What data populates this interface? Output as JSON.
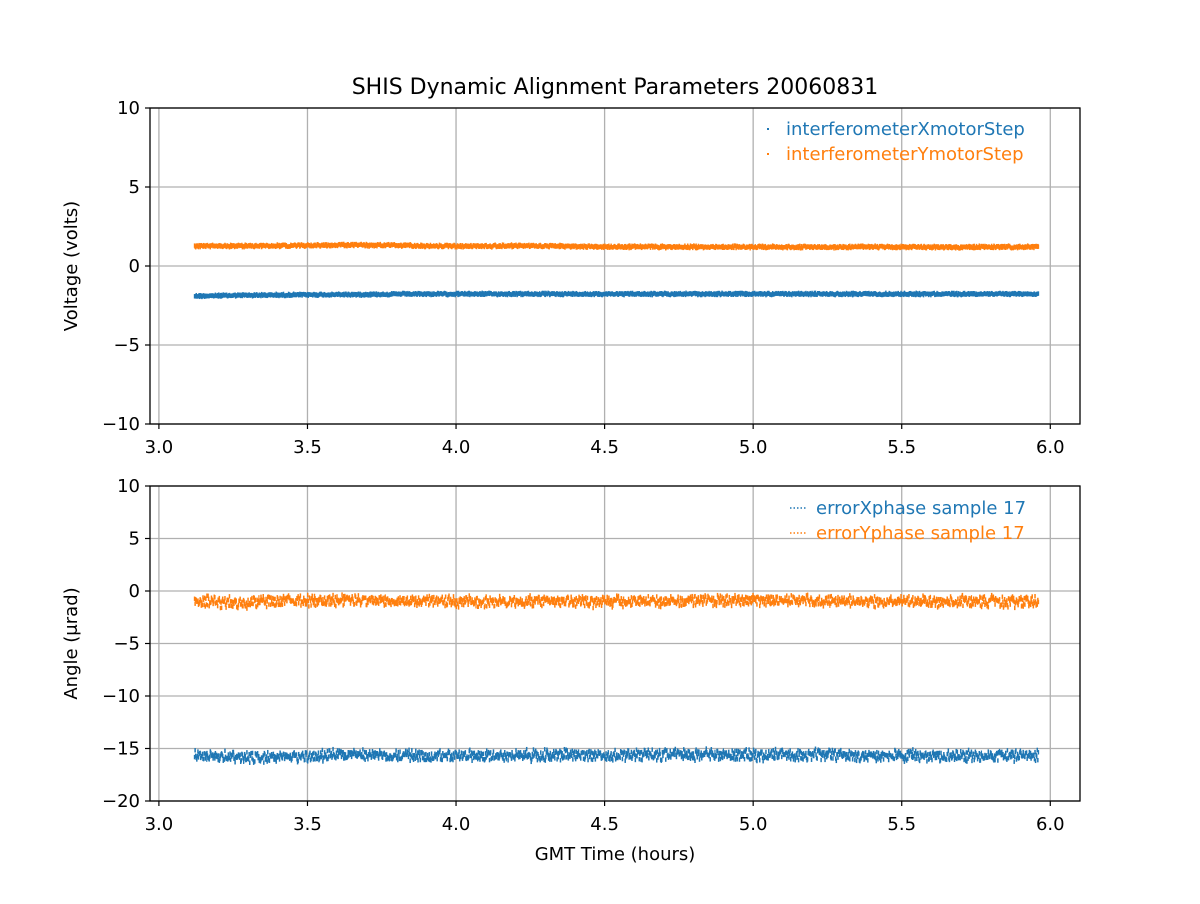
{
  "title": "SHIS Dynamic Alignment Parameters 20060831",
  "colors": {
    "blue": "#1f77b4",
    "orange": "#ff7f0e",
    "grid": "#b0b0b0",
    "axes": "#000000"
  },
  "chart_data": [
    {
      "type": "scatter",
      "title": "SHIS Dynamic Alignment Parameters 20060831",
      "xlabel": "",
      "ylabel": "Voltage (volts)",
      "xlim": [
        2.97,
        6.1
      ],
      "ylim": [
        -10,
        10
      ],
      "xticks": [
        3.0,
        3.5,
        4.0,
        4.5,
        5.0,
        5.5,
        6.0
      ],
      "xtick_labels": [
        "3.0",
        "3.5",
        "4.0",
        "4.5",
        "5.0",
        "5.5",
        "6.0"
      ],
      "yticks": [
        10,
        5,
        0,
        -5,
        -10
      ],
      "ytick_labels": [
        "10",
        "5",
        "0",
        "−5",
        "−10"
      ],
      "grid": true,
      "legend_position": "top-right",
      "x_range": [
        3.12,
        5.96
      ],
      "series": [
        {
          "name": "interferometerXmotorStep",
          "color": "#1f77b4",
          "x": [
            3.12,
            3.3,
            3.5,
            3.7,
            3.8,
            4.0,
            4.5,
            5.0,
            5.5,
            5.96
          ],
          "y": [
            -1.9,
            -1.85,
            -1.82,
            -1.8,
            -1.78,
            -1.77,
            -1.77,
            -1.77,
            -1.77,
            -1.77
          ],
          "spread": 0.12
        },
        {
          "name": "interferometerYmotorStep",
          "color": "#ff7f0e",
          "x": [
            3.12,
            3.3,
            3.5,
            3.6,
            3.8,
            4.0,
            4.2,
            4.5,
            5.0,
            5.5,
            5.96
          ],
          "y": [
            1.25,
            1.27,
            1.3,
            1.33,
            1.3,
            1.25,
            1.28,
            1.22,
            1.2,
            1.2,
            1.2
          ],
          "spread": 0.14
        }
      ]
    },
    {
      "type": "scatter",
      "xlabel": "GMT Time (hours)",
      "ylabel": "Angle (μrad)",
      "xlim": [
        2.97,
        6.1
      ],
      "ylim": [
        -20,
        10
      ],
      "xticks": [
        3.0,
        3.5,
        4.0,
        4.5,
        5.0,
        5.5,
        6.0
      ],
      "xtick_labels": [
        "3.0",
        "3.5",
        "4.0",
        "4.5",
        "5.0",
        "5.5",
        "6.0"
      ],
      "yticks": [
        10,
        5,
        0,
        -5,
        -10,
        -15,
        -20
      ],
      "ytick_labels": [
        "10",
        "5",
        "0",
        "−5",
        "−10",
        "−15",
        "−20"
      ],
      "grid": true,
      "legend_position": "top-right",
      "x_range": [
        3.12,
        5.96
      ],
      "series": [
        {
          "name": "errorXphase sample 17",
          "color": "#1f77b4",
          "x": [
            3.12,
            3.4,
            3.6,
            4.0,
            4.5,
            5.0,
            5.5,
            5.96
          ],
          "y": [
            -15.7,
            -15.9,
            -15.6,
            -15.7,
            -15.6,
            -15.6,
            -15.7,
            -15.7
          ],
          "spread": 0.9
        },
        {
          "name": "errorYphase sample 17",
          "color": "#ff7f0e",
          "x": [
            3.12,
            3.3,
            3.5,
            4.0,
            4.5,
            5.0,
            5.5,
            5.96
          ],
          "y": [
            -1.0,
            -1.1,
            -0.9,
            -1.0,
            -1.0,
            -0.9,
            -1.0,
            -1.0
          ],
          "spread": 0.9
        }
      ]
    }
  ]
}
